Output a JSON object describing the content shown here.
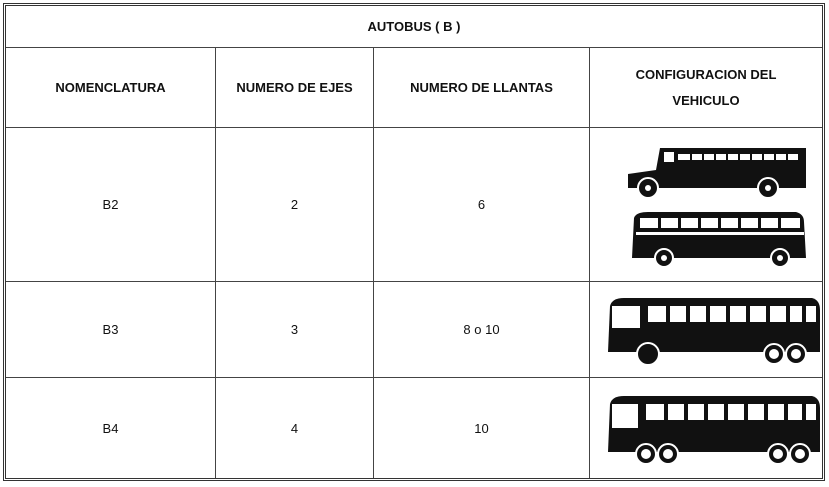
{
  "table": {
    "title": "AUTOBUS ( B )",
    "headers": [
      "NOMENCLATURA",
      "NUMERO DE EJES",
      "NUMERO DE LLANTAS",
      "CONFIGURACION DEL VEHICULO"
    ],
    "rows": [
      [
        "B2",
        "2",
        "6"
      ],
      [
        "B3",
        "3",
        "8 o 10"
      ],
      [
        "B4",
        "4",
        "10"
      ]
    ]
  }
}
